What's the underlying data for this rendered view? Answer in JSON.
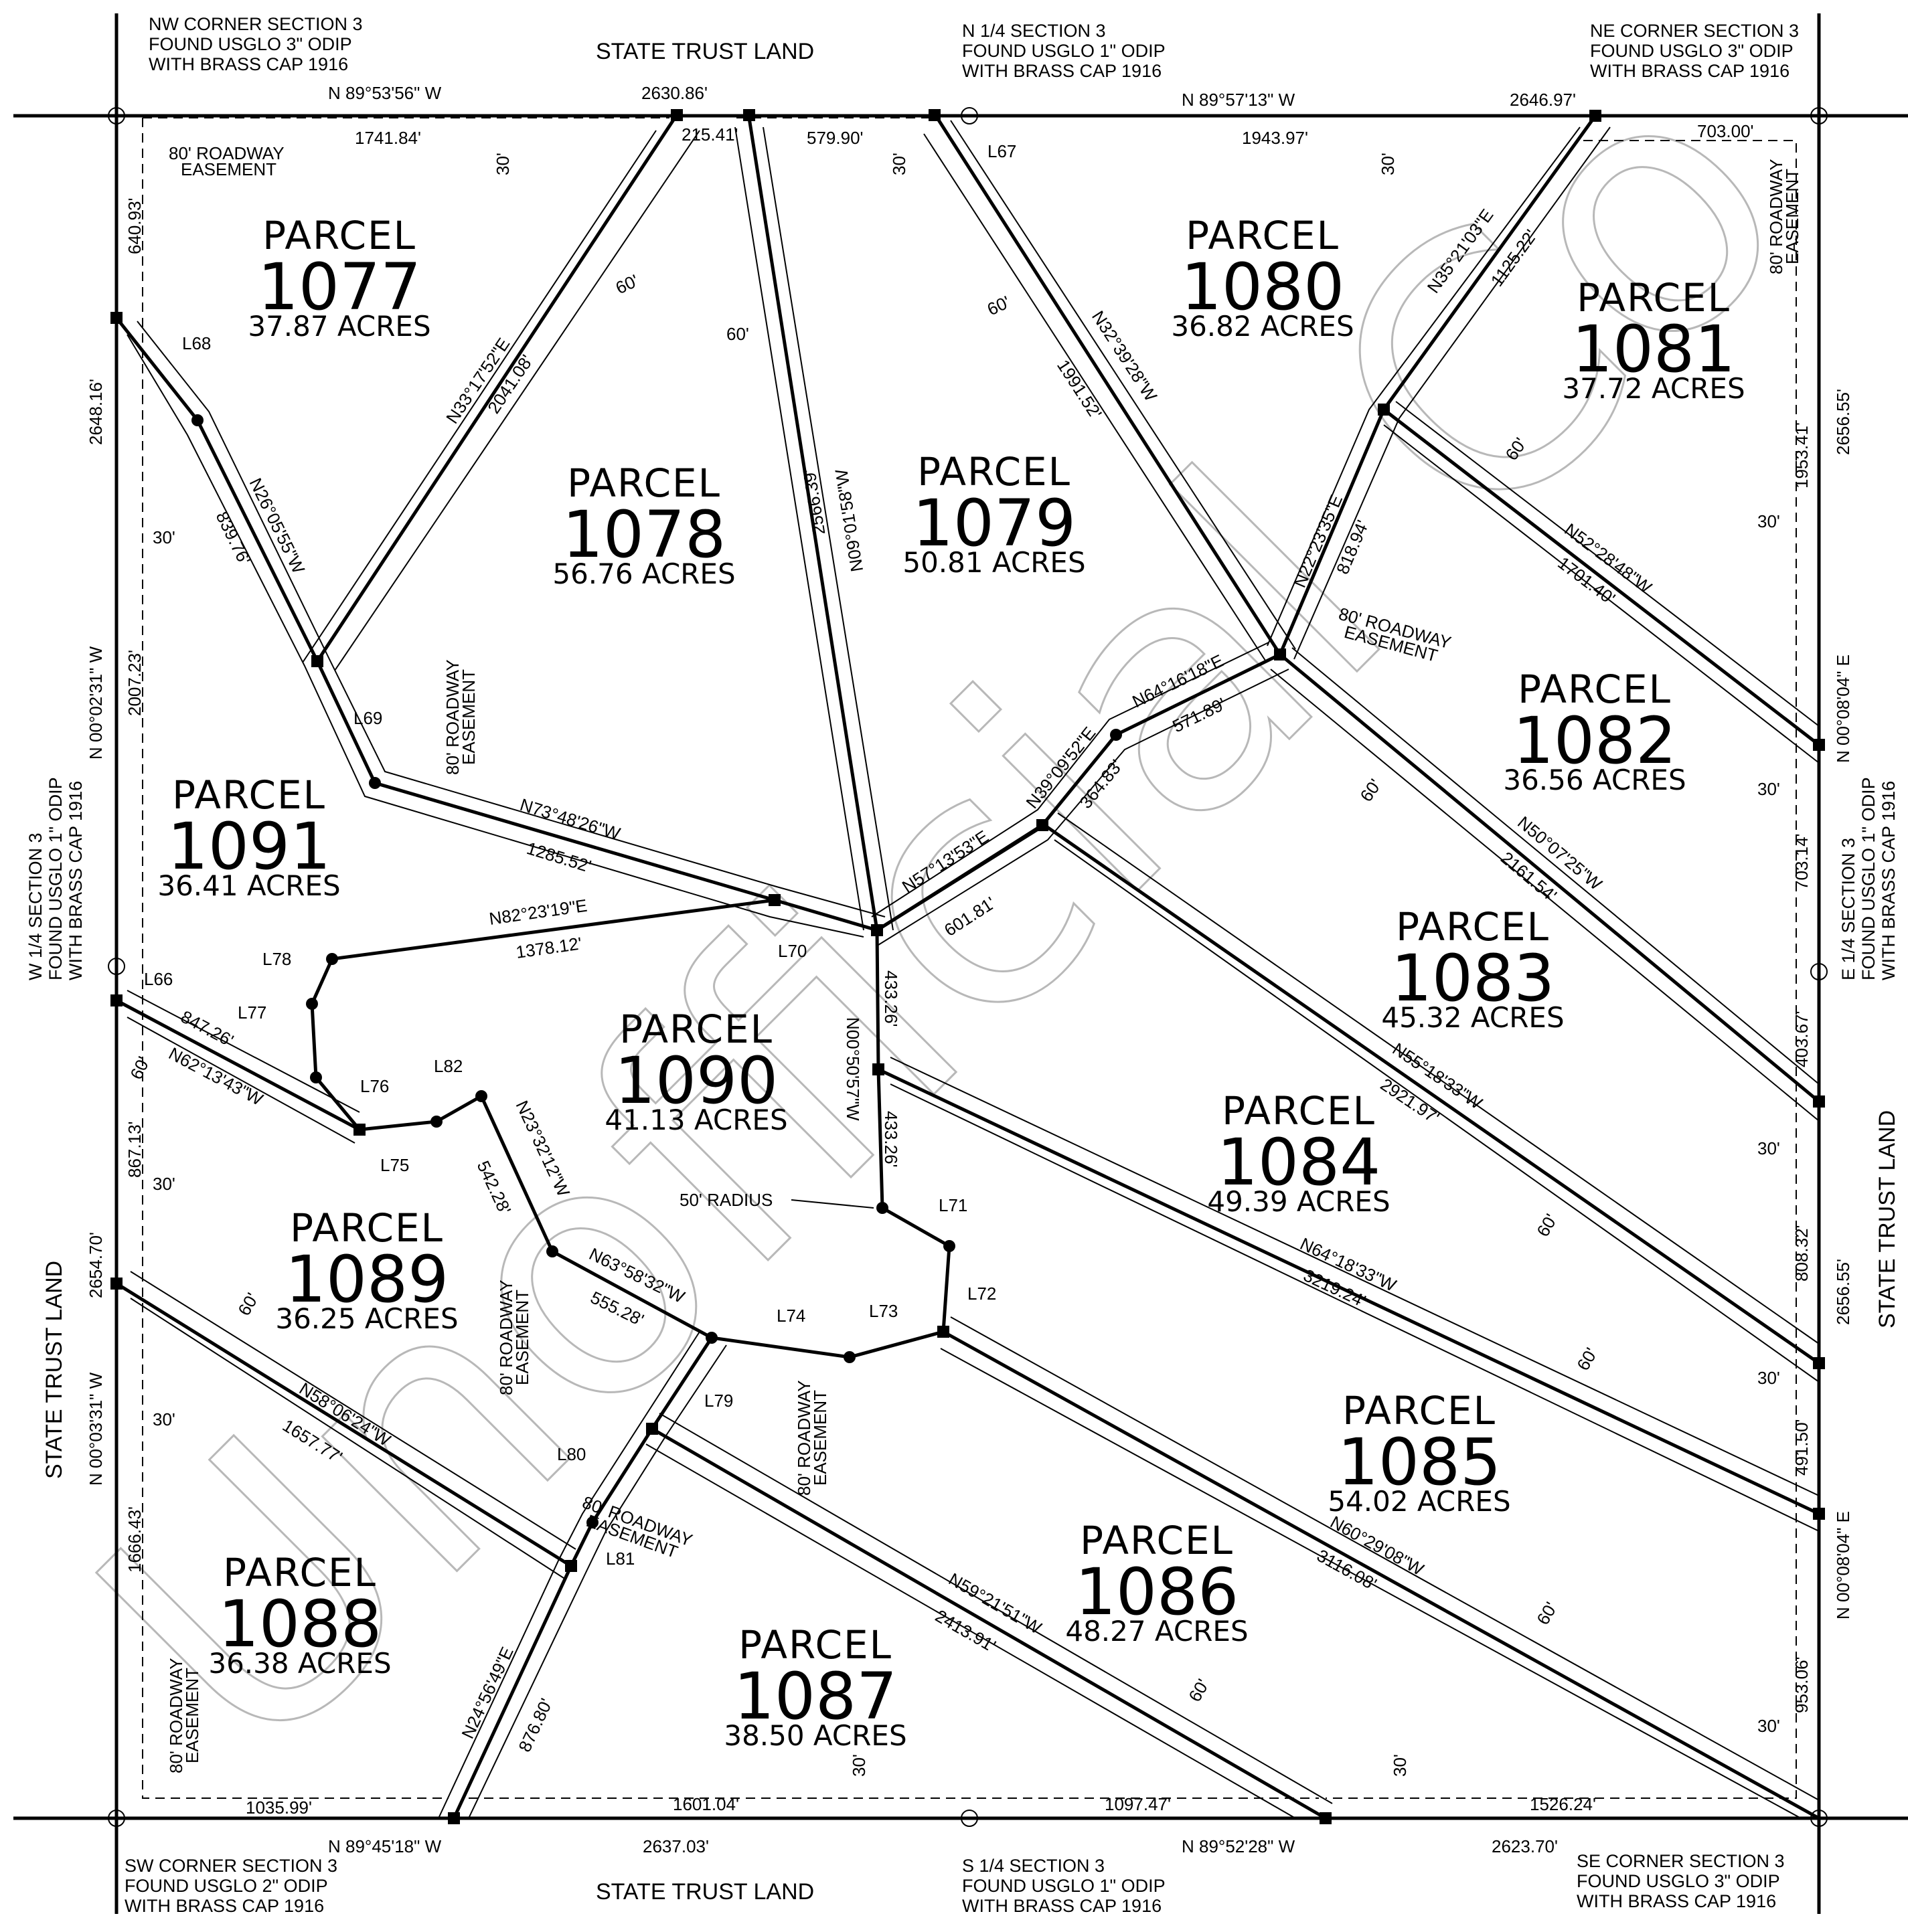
{
  "adjoining": {
    "north": "STATE TRUST LAND",
    "south": "STATE TRUST LAND",
    "west": "STATE TRUST LAND",
    "east": "STATE TRUST LAND"
  },
  "watermark": "Unofficial Co",
  "corners": {
    "nw": [
      "NW CORNER SECTION 3",
      "FOUND USGLO 3\" ODIP",
      "WITH BRASS CAP 1916"
    ],
    "n14": [
      "N 1/4 SECTION 3",
      "FOUND USGLO 1\" ODIP",
      "WITH BRASS CAP 1916"
    ],
    "ne": [
      "NE CORNER SECTION 3",
      "FOUND USGLO 3\" ODIP",
      "WITH BRASS CAP 1916"
    ],
    "w14": [
      "W 1/4  SECTION 3",
      "FOUND USGLO 1\" ODIP",
      "WITH BRASS CAP 1916"
    ],
    "e14": [
      "E 1/4  SECTION 3",
      "FOUND USGLO 1\" ODIP",
      "WITH BRASS CAP 1916"
    ],
    "sw": [
      "SW CORNER SECTION 3",
      "FOUND USGLO 2\" ODIP",
      "WITH BRASS CAP 1916"
    ],
    "s14": [
      "S 1/4 SECTION 3",
      "FOUND USGLO 1\" ODIP",
      "WITH BRASS CAP 1916"
    ],
    "se": [
      "SE CORNER SECTION 3",
      "FOUND USGLO 3\" ODIP",
      "WITH BRASS CAP 1916"
    ]
  },
  "parcels": [
    {
      "label": "PARCEL",
      "number": "1077",
      "acres": "37.87 ACRES"
    },
    {
      "label": "PARCEL",
      "number": "1078",
      "acres": "56.76 ACRES"
    },
    {
      "label": "PARCEL",
      "number": "1079",
      "acres": "50.81 ACRES"
    },
    {
      "label": "PARCEL",
      "number": "1080",
      "acres": "36.82 ACRES"
    },
    {
      "label": "PARCEL",
      "number": "1081",
      "acres": "37.72 ACRES"
    },
    {
      "label": "PARCEL",
      "number": "1082",
      "acres": "36.56 ACRES"
    },
    {
      "label": "PARCEL",
      "number": "1083",
      "acres": "45.32 ACRES"
    },
    {
      "label": "PARCEL",
      "number": "1084",
      "acres": "49.39 ACRES"
    },
    {
      "label": "PARCEL",
      "number": "1085",
      "acres": "54.02 ACRES"
    },
    {
      "label": "PARCEL",
      "number": "1086",
      "acres": "48.27 ACRES"
    },
    {
      "label": "PARCEL",
      "number": "1087",
      "acres": "38.50 ACRES"
    },
    {
      "label": "PARCEL",
      "number": "1088",
      "acres": "36.38 ACRES"
    },
    {
      "label": "PARCEL",
      "number": "1089",
      "acres": "36.25 ACRES"
    },
    {
      "label": "PARCEL",
      "number": "1090",
      "acres": "41.13 ACRES"
    },
    {
      "label": "PARCEL",
      "number": "1091",
      "acres": "36.41 ACRES"
    }
  ],
  "boundary": {
    "north_w_bearing": "N 89°53'56\" W",
    "north_w_total": "2630.86'",
    "north_e_bearing": "N 89°57'13\" W",
    "north_e_total": "2646.97'",
    "north_seg_1": "1741.84'",
    "north_seg_2": "215.41'",
    "north_seg_3": "579.90'",
    "north_seg_4": "1943.97'",
    "north_seg_5": "703.00'",
    "west_n_bearing": "N 00°02'31\" W",
    "west_n_total": "2648.16'",
    "west_s_bearing": "N 00°03'31\" W",
    "west_s_total": "2654.70'",
    "west_seg_1": "640.93'",
    "west_seg_2": "2007.23'",
    "west_seg_3": "867.13'",
    "west_seg_4": "1666.43'",
    "east_n_bearing": "N 00°08'04\" E",
    "east_n_total": "2656.55'",
    "east_s_bearing": "N 00°08'04\" E",
    "east_s_total": "2656.55'",
    "east_seg_1": "1953.41'",
    "east_seg_2": "703.14'",
    "east_seg_3": "403.67'",
    "east_seg_4": "808.32'",
    "east_seg_5": "491.50'",
    "east_seg_6": "953.06'",
    "south_w_bearing": "N 89°45'18\" W",
    "south_w_total": "2637.03'",
    "south_e_bearing": "N 89°52'28\" W",
    "south_e_total": "2623.70'",
    "south_seg_1": "1035.99'",
    "south_seg_2": "1601.04'",
    "south_seg_3": "1097.47'",
    "south_seg_4": "1526.24'"
  },
  "courses": {
    "c1_b": "N33°17'52\"E",
    "c1_d": "2041.08'",
    "c2_b": "N09°01'58\"W",
    "c2_d": "2566.39'",
    "c3_b": "N32°39'28\"W",
    "c3_d": "1991.52'",
    "c4_b": "N35°21'03\"E",
    "c4_d": "1125.22'",
    "c5_b": "N22°23'35\"E",
    "c5_d": "818.94'",
    "c6_b": "N52°28'48\"W",
    "c6_d": "1701.40'",
    "c7_b": "N26°05'55\"W",
    "c7_d": "839.76'",
    "c8_b": "N73°48'26\"W",
    "c8_d": "1285.52'",
    "c9_b": "N64°16'18\"E",
    "c9_d": "571.89'",
    "c10_b": "N39°09'52\"E",
    "c10_d": "364.83'",
    "c11_b": "N57°13'53\"E",
    "c11_d": "601.81'",
    "c12_b": "N50°07'25\"W",
    "c12_d": "2161.54'",
    "c13_b": "N82°23'19\"E",
    "c13_d": "1378.12'",
    "c14_b": "N00°50'57\"W",
    "c14_d1": "433.26'",
    "c14_d2": "433.26'",
    "c15_b": "N55°18'33\"W",
    "c15_d": "2921.97'",
    "c16_b": "N62°13'43\"W",
    "c16_d": "847.26'",
    "c17_b": "N23°32'12\"W",
    "c17_d": "542.28'",
    "c18_b": "N63°58'32\"W",
    "c18_d": "555.28'",
    "c19_b": "N64°18'33\"W",
    "c19_d": "3219.24'",
    "c20_b": "N58°06'24\"W",
    "c20_d": "1657.77'",
    "c21_b": "N60°29'08\"W",
    "c21_d": "3116.08'",
    "c22_b": "N59°21'51\"W",
    "c22_d": "2413.91'",
    "c23_b": "N24°56'49\"E",
    "c23_d": "876.80'"
  },
  "line_labels": [
    "L66",
    "L67",
    "L68",
    "L69",
    "L70",
    "L71",
    "L72",
    "L73",
    "L74",
    "L75",
    "L76",
    "L77",
    "L78",
    "L79",
    "L80",
    "L81",
    "L82"
  ],
  "notes": {
    "radius": "50' RADIUS",
    "easement_1": "80' ROADWAY",
    "easement_2": "EASEMENT",
    "w30": "30'",
    "w60": "60'"
  }
}
